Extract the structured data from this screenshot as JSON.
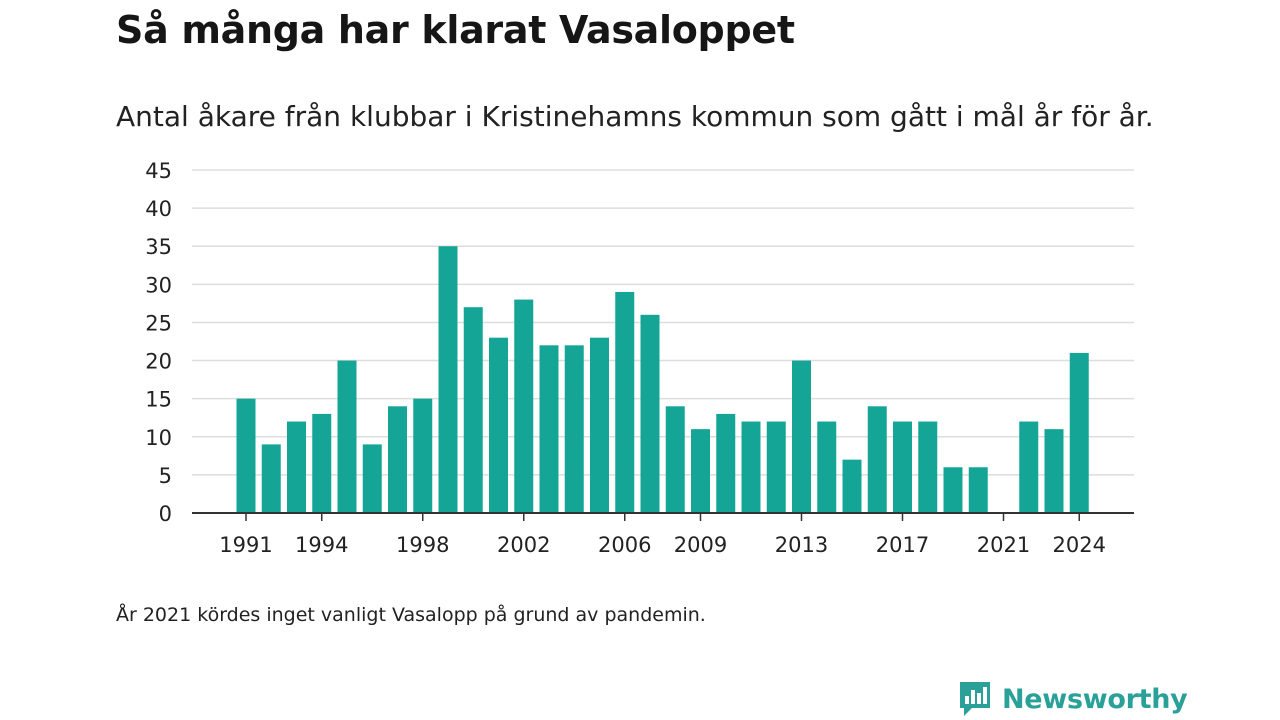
{
  "header": {
    "title": "Så många har klarat Vasaloppet",
    "subtitle": "Antal åkare från klubbar i Kristinehamns kommun som gått i mål år för år."
  },
  "footer": {
    "note": "År 2021 kördes inget vanligt Vasalopp på grund av pandemin.",
    "logo_text": "Newsworthy"
  },
  "colors": {
    "bar": "#14a596",
    "grid": "#dddddd",
    "axis": "#333333",
    "brand": "#2aa198"
  },
  "chart_data": {
    "type": "bar",
    "title": "Så många har klarat Vasaloppet",
    "subtitle": "Antal åkare från klubbar i Kristinehamns kommun som gått i mål år för år.",
    "xlabel": "",
    "ylabel": "",
    "ylim": [
      0,
      45
    ],
    "yticks": [
      0,
      5,
      10,
      15,
      20,
      25,
      30,
      35,
      40,
      45
    ],
    "xtick_labels": [
      "1991",
      "1994",
      "1998",
      "2002",
      "2006",
      "2009",
      "2013",
      "2017",
      "2021",
      "2024"
    ],
    "grid": true,
    "categories": [
      "1991",
      "1992",
      "1993",
      "1994",
      "1995",
      "1996",
      "1997",
      "1998",
      "1999",
      "2000",
      "2001",
      "2002",
      "2003",
      "2004",
      "2005",
      "2006",
      "2007",
      "2008",
      "2009",
      "2010",
      "2011",
      "2012",
      "2013",
      "2014",
      "2015",
      "2016",
      "2017",
      "2018",
      "2019",
      "2020",
      "2021",
      "2022",
      "2023",
      "2024"
    ],
    "values": [
      15,
      9,
      12,
      13,
      20,
      9,
      14,
      15,
      35,
      27,
      23,
      28,
      22,
      22,
      23,
      29,
      26,
      14,
      11,
      13,
      12,
      12,
      20,
      12,
      7,
      14,
      12,
      12,
      6,
      6,
      0,
      12,
      11,
      21
    ]
  }
}
